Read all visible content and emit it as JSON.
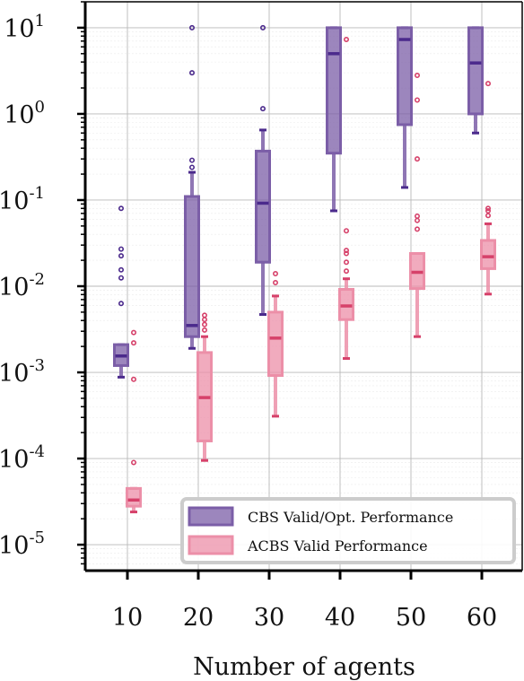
{
  "chart_data": {
    "type": "box",
    "title": "",
    "xlabel": "Number of agents",
    "ylabel": "",
    "yscale": "log",
    "ylim": [
      5e-06,
      20
    ],
    "categories": [
      "10",
      "20",
      "30",
      "40",
      "50",
      "60"
    ],
    "y_ticks": [
      {
        "value": 1e-05,
        "base": "10",
        "exp": "-5"
      },
      {
        "value": 0.0001,
        "base": "10",
        "exp": "-4"
      },
      {
        "value": 0.001,
        "base": "10",
        "exp": "-3"
      },
      {
        "value": 0.01,
        "base": "10",
        "exp": "-2"
      },
      {
        "value": 0.1,
        "base": "10",
        "exp": "-1"
      },
      {
        "value": 1,
        "base": "10",
        "exp": "0"
      },
      {
        "value": 10,
        "base": "10",
        "exp": "1"
      }
    ],
    "grid": true,
    "legend_position": "bottom-right",
    "series": [
      {
        "name": "CBS Valid/Opt. Performance",
        "color": "#4b2a8c",
        "fill": "#7b5ea7",
        "boxes": [
          {
            "whisker_low": 0.00088,
            "q1": 0.0012,
            "median": 0.00155,
            "q3": 0.0021,
            "whisker_high": 0.0021,
            "outliers": [
              0.0063,
              0.0125,
              0.0155,
              0.0225,
              0.027,
              0.08
            ]
          },
          {
            "whisker_low": 0.0019,
            "q1": 0.0026,
            "median": 0.0035,
            "q3": 0.11,
            "whisker_high": 0.21,
            "outliers": [
              0.24,
              0.29,
              3.0,
              10.0
            ]
          },
          {
            "whisker_low": 0.0047,
            "q1": 0.019,
            "median": 0.092,
            "q3": 0.37,
            "whisker_high": 0.65,
            "outliers": [
              1.15,
              10.0
            ]
          },
          {
            "whisker_low": 0.075,
            "q1": 0.35,
            "median": 5.0,
            "q3": 10.0,
            "whisker_high": 10.0,
            "outliers": []
          },
          {
            "whisker_low": 0.14,
            "q1": 0.75,
            "median": 7.3,
            "q3": 10.0,
            "whisker_high": 10.0,
            "outliers": []
          },
          {
            "whisker_low": 0.6,
            "q1": 1.0,
            "median": 3.9,
            "q3": 10.0,
            "whisker_high": 10.0,
            "outliers": []
          }
        ]
      },
      {
        "name": "ACBS Valid Performance",
        "color": "#d6416a",
        "fill": "#ec8fa8",
        "boxes": [
          {
            "whisker_low": 2.4e-05,
            "q1": 2.8e-05,
            "median": 3.3e-05,
            "q3": 4.5e-05,
            "whisker_high": 4.5e-05,
            "outliers": [
              9e-05,
              0.00083,
              0.0022,
              0.0029
            ]
          },
          {
            "whisker_low": 9.5e-05,
            "q1": 0.00016,
            "median": 0.00051,
            "q3": 0.0017,
            "whisker_high": 0.0026,
            "outliers": [
              0.0031,
              0.0036,
              0.0041,
              0.0046
            ]
          },
          {
            "whisker_low": 0.00031,
            "q1": 0.00092,
            "median": 0.0025,
            "q3": 0.005,
            "whisker_high": 0.0077,
            "outliers": [
              0.011,
              0.014
            ]
          },
          {
            "whisker_low": 0.00145,
            "q1": 0.0041,
            "median": 0.0059,
            "q3": 0.0092,
            "whisker_high": 0.0122,
            "outliers": [
              0.015,
              0.019,
              0.024,
              0.026,
              0.044,
              7.3
            ]
          },
          {
            "whisker_low": 0.0026,
            "q1": 0.0094,
            "median": 0.0145,
            "q3": 0.024,
            "whisker_high": 0.024,
            "outliers": [
              0.046,
              0.058,
              0.065,
              0.3,
              1.45,
              2.8
            ]
          },
          {
            "whisker_low": 0.0081,
            "q1": 0.016,
            "median": 0.022,
            "q3": 0.034,
            "whisker_high": 0.053,
            "outliers": [
              0.066,
              0.075,
              0.08,
              2.25
            ]
          }
        ]
      }
    ]
  }
}
